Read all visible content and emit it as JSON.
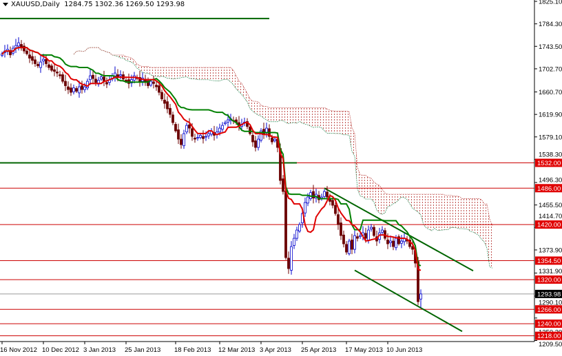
{
  "header": {
    "symbol": "XAUUSD,Daily",
    "ohlc": "1284.75 1302.36 1269.50 1293.98"
  },
  "chart_data": {
    "type": "candlestick",
    "title": "XAUUSD,Daily",
    "indicators": [
      "Ichimoku Kinko Hyo (tenkan red, kijun green, cloud dotted)"
    ],
    "ylim": [
      1209.5,
      1825.1
    ],
    "y_ticks": [
      1825.1,
      1784.3,
      1743.5,
      1702.7,
      1660.7,
      1619.9,
      1579.1,
      1538.3,
      1496.3,
      1455.5,
      1414.7,
      1373.9,
      1331.9,
      1290.1,
      1250.3,
      1209.5
    ],
    "x_ticks": [
      {
        "label": "16 Nov 2012",
        "bar": 0
      },
      {
        "label": "10 Dec 2012",
        "bar": 15
      },
      {
        "label": "3 Jan 2013",
        "bar": 30
      },
      {
        "label": "25 Jan 2013",
        "bar": 45
      },
      {
        "label": "18 Feb 2013",
        "bar": 63
      },
      {
        "label": "12 Mar 2013",
        "bar": 79
      },
      {
        "label": "3 Apr 2013",
        "bar": 94
      },
      {
        "label": "25 Apr 2013",
        "bar": 109
      },
      {
        "label": "17 May 2013",
        "bar": 125
      },
      {
        "label": "10 Jun 2013",
        "bar": 140
      }
    ],
    "closes": [
      1730,
      1735,
      1738,
      1728,
      1740,
      1745,
      1750,
      1742,
      1735,
      1730,
      1722,
      1718,
      1712,
      1708,
      1715,
      1720,
      1712,
      1705,
      1700,
      1698,
      1695,
      1690,
      1680,
      1672,
      1665,
      1660,
      1668,
      1662,
      1670,
      1665,
      1670,
      1680,
      1690,
      1685,
      1678,
      1682,
      1688,
      1680,
      1675,
      1683,
      1690,
      1695,
      1688,
      1692,
      1684,
      1680,
      1676,
      1683,
      1690,
      1685,
      1680,
      1686,
      1678,
      1672,
      1680,
      1676,
      1670,
      1660,
      1648,
      1640,
      1630,
      1620,
      1605,
      1590,
      1575,
      1565,
      1585,
      1600,
      1595,
      1580,
      1575,
      1578,
      1582,
      1576,
      1580,
      1585,
      1590,
      1582,
      1588,
      1595,
      1600,
      1605,
      1610,
      1612,
      1608,
      1605,
      1600,
      1602,
      1606,
      1598,
      1585,
      1570,
      1560,
      1575,
      1590,
      1585,
      1595,
      1580,
      1570,
      1575,
      1560,
      1500,
      1480,
      1360,
      1340,
      1380,
      1395,
      1410,
      1420,
      1440,
      1460,
      1470,
      1478,
      1468,
      1475,
      1465,
      1470,
      1480,
      1470,
      1462,
      1455,
      1440,
      1420,
      1400,
      1385,
      1370,
      1390,
      1375,
      1400,
      1395,
      1400,
      1405,
      1395,
      1410,
      1415,
      1400,
      1390,
      1405,
      1410,
      1395,
      1385,
      1390,
      1380,
      1395,
      1385,
      1390,
      1395,
      1390,
      1380,
      1375,
      1350,
      1280,
      1293.98
    ],
    "current_price": {
      "label": "1293.98",
      "value": 1293.98
    },
    "levels": [
      {
        "label": "1532.00",
        "value": 1532
      },
      {
        "label": "1486.00",
        "value": 1486
      },
      {
        "label": "1420.00",
        "value": 1420
      },
      {
        "label": "1354.50",
        "value": 1354.5
      },
      {
        "label": "1320.00",
        "value": 1320
      },
      {
        "label": "1266.00",
        "value": 1266
      },
      {
        "label": "1240.00",
        "value": 1240
      },
      {
        "label": "1218.00",
        "value": 1218
      }
    ],
    "green_horizontals": [
      {
        "value": 1794,
        "to_bar": 97
      },
      {
        "value": 1532,
        "to_bar": 107
      }
    ],
    "trendlines": [
      {
        "from": {
          "bar": 117,
          "price": 1486
        },
        "to": {
          "bar": 171,
          "price": 1336
        }
      },
      {
        "from": {
          "bar": 128,
          "price": 1337
        },
        "to": {
          "bar": 167,
          "price": 1226
        }
      }
    ],
    "colors": {
      "bull": "#0000cc",
      "bear": "#6b0000",
      "tenkan": "#e00000",
      "kijun": "#008000",
      "level": "#cc0000",
      "level_label": "#e00000",
      "cloud_bear": "#c0504d",
      "cloud_bull": "#2e8b57",
      "trend": "#006400"
    }
  }
}
